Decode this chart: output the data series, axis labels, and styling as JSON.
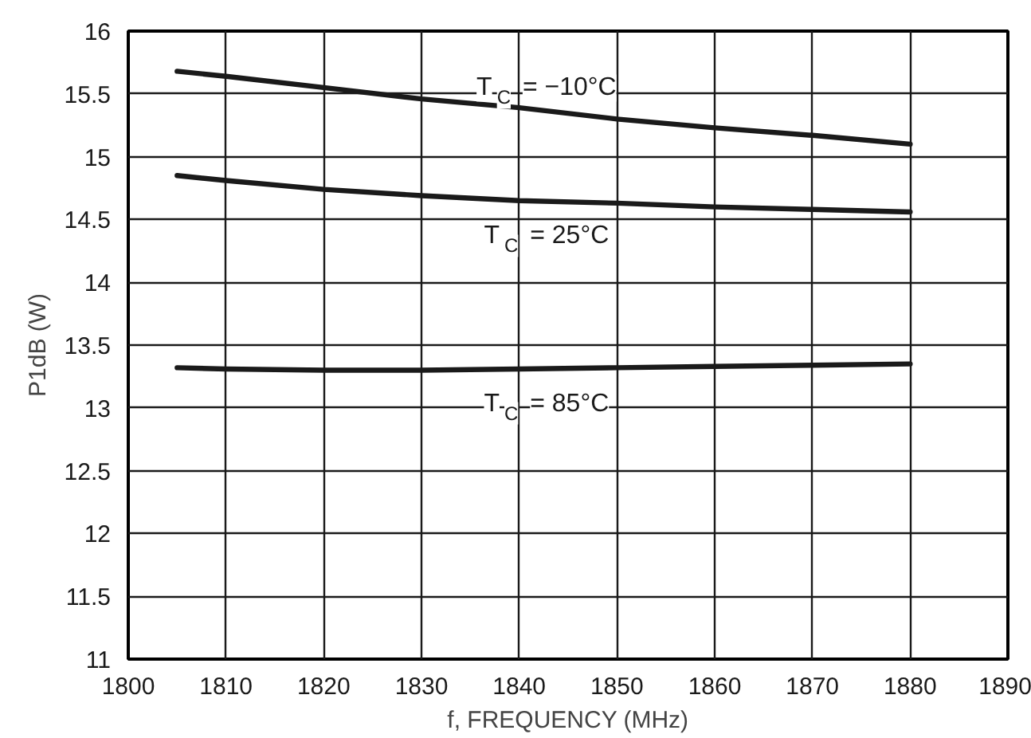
{
  "chart_data": {
    "type": "line",
    "xlabel": "f, FREQUENCY (MHz)",
    "ylabel": "P1dB (W)",
    "x": [
      1805,
      1810,
      1820,
      1830,
      1840,
      1850,
      1860,
      1870,
      1880
    ],
    "series": [
      {
        "name": "T$_{C}$ = −10°C",
        "color": "#1a1a1a",
        "values": [
          15.68,
          15.64,
          15.55,
          15.46,
          15.39,
          15.3,
          15.23,
          15.17,
          15.1
        ]
      },
      {
        "name": "T$_{C}$ = 25°C",
        "color": "#1a1a1a",
        "values": [
          14.85,
          14.81,
          14.74,
          14.69,
          14.65,
          14.63,
          14.6,
          14.58,
          14.56
        ]
      },
      {
        "name": "T$_{C}$ = 85°C",
        "color": "#1a1a1a",
        "values": [
          13.32,
          13.31,
          13.3,
          13.3,
          13.31,
          13.32,
          13.33,
          13.34,
          13.35
        ]
      }
    ],
    "xlim": [
      1800,
      1890
    ],
    "ylim": [
      11,
      16
    ],
    "xticks": [
      1800,
      1810,
      1820,
      1830,
      1840,
      1850,
      1860,
      1870,
      1880,
      1890
    ],
    "yticks": [
      11,
      11.5,
      12,
      12.5,
      13,
      13.5,
      14,
      14.5,
      15,
      15.5,
      16
    ],
    "grid": true,
    "marker": "none",
    "line_style": "solid"
  }
}
